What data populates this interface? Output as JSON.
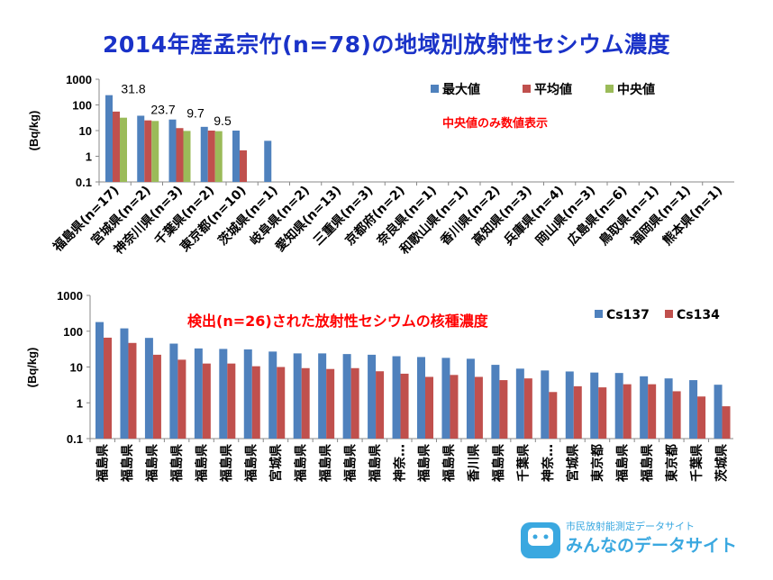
{
  "page_title": "2014年産孟宗竹(n=78)の地域別放射性セシウム濃度",
  "chart_data": [
    {
      "type": "bar",
      "scale": "log",
      "ylabel": "(Bq/kg)",
      "ylim": [
        0.1,
        1000
      ],
      "yticks": [
        "1000",
        "100",
        "10",
        "1",
        "0.1"
      ],
      "annotation": "中央値のみ数値表示",
      "categories": [
        "福島県(n=17)",
        "宮城県(n=2)",
        "神奈川県(n=3)",
        "千葉県(n=2)",
        "東京都(n=10)",
        "茨城県(n=1)",
        "岐阜県(n=2)",
        "愛知県(n=13)",
        "三重県(n=3)",
        "京都府(n=2)",
        "奈良県(n=1)",
        "和歌山県(n=1)",
        "香川県(n=2)",
        "高知県(n=3)",
        "兵庫県(n=4)",
        "岡山県(n=3)",
        "広島県(n=6)",
        "鳥取県(n=1)",
        "福岡県(n=1)",
        "熊本県(n=1)"
      ],
      "series": [
        {
          "name": "最大値",
          "color": "#4f81bd",
          "values": [
            240,
            38,
            27,
            14,
            10,
            4,
            null,
            null,
            null,
            null,
            null,
            null,
            null,
            null,
            null,
            null,
            null,
            null,
            null,
            null
          ]
        },
        {
          "name": "平均値",
          "color": "#c0504d",
          "values": [
            55,
            25,
            12.5,
            10,
            1.7,
            null,
            null,
            null,
            null,
            null,
            null,
            null,
            null,
            null,
            null,
            null,
            null,
            null,
            null,
            null
          ]
        },
        {
          "name": "中央値",
          "color": "#9bbb59",
          "values": [
            31.8,
            23.7,
            9.7,
            9.5,
            null,
            null,
            null,
            null,
            null,
            null,
            null,
            null,
            null,
            null,
            null,
            null,
            null,
            null,
            null,
            null
          ]
        }
      ],
      "data_labels": [
        "31.8",
        "23.7",
        "9.7",
        "9.5"
      ]
    },
    {
      "type": "bar",
      "scale": "log",
      "ylabel": "(Bq/kg)",
      "ylim": [
        0.1,
        1000
      ],
      "yticks": [
        "1000",
        "100",
        "10",
        "1",
        "0.1"
      ],
      "annotation": "検出(n=26)された放射性セシウムの核種濃度",
      "categories": [
        "福島県",
        "福島県",
        "福島県",
        "福島県",
        "福島県",
        "福島県",
        "福島県",
        "宮城県",
        "福島県",
        "福島県",
        "福島県",
        "福島県",
        "神奈…",
        "福島県",
        "福島県",
        "香川県",
        "福島県",
        "千葉県",
        "神奈…",
        "宮城県",
        "東京都",
        "福島県",
        "福島県",
        "東京都",
        "千葉県",
        "茨城県"
      ],
      "series": [
        {
          "name": "Cs137",
          "color": "#4f81bd",
          "values": [
            180,
            120,
            65,
            45,
            33,
            32,
            31,
            27,
            24,
            24,
            23,
            22,
            20,
            19,
            18,
            17,
            11.5,
            9,
            8,
            7.5,
            7,
            6.8,
            5.5,
            4.8,
            4.3,
            3.2
          ]
        },
        {
          "name": "Cs134",
          "color": "#c0504d",
          "values": [
            66,
            47,
            22,
            16,
            12.5,
            12.5,
            10.5,
            10,
            9.3,
            8.8,
            9.3,
            7.6,
            6.5,
            5.3,
            6,
            5.3,
            4.3,
            4.8,
            2,
            2.9,
            2.7,
            3.3,
            3.3,
            2.1,
            1.5,
            0.8
          ]
        }
      ]
    }
  ],
  "branding": {
    "top": "市民放射能測定データサイト",
    "main": "みんなのデータサイト"
  }
}
